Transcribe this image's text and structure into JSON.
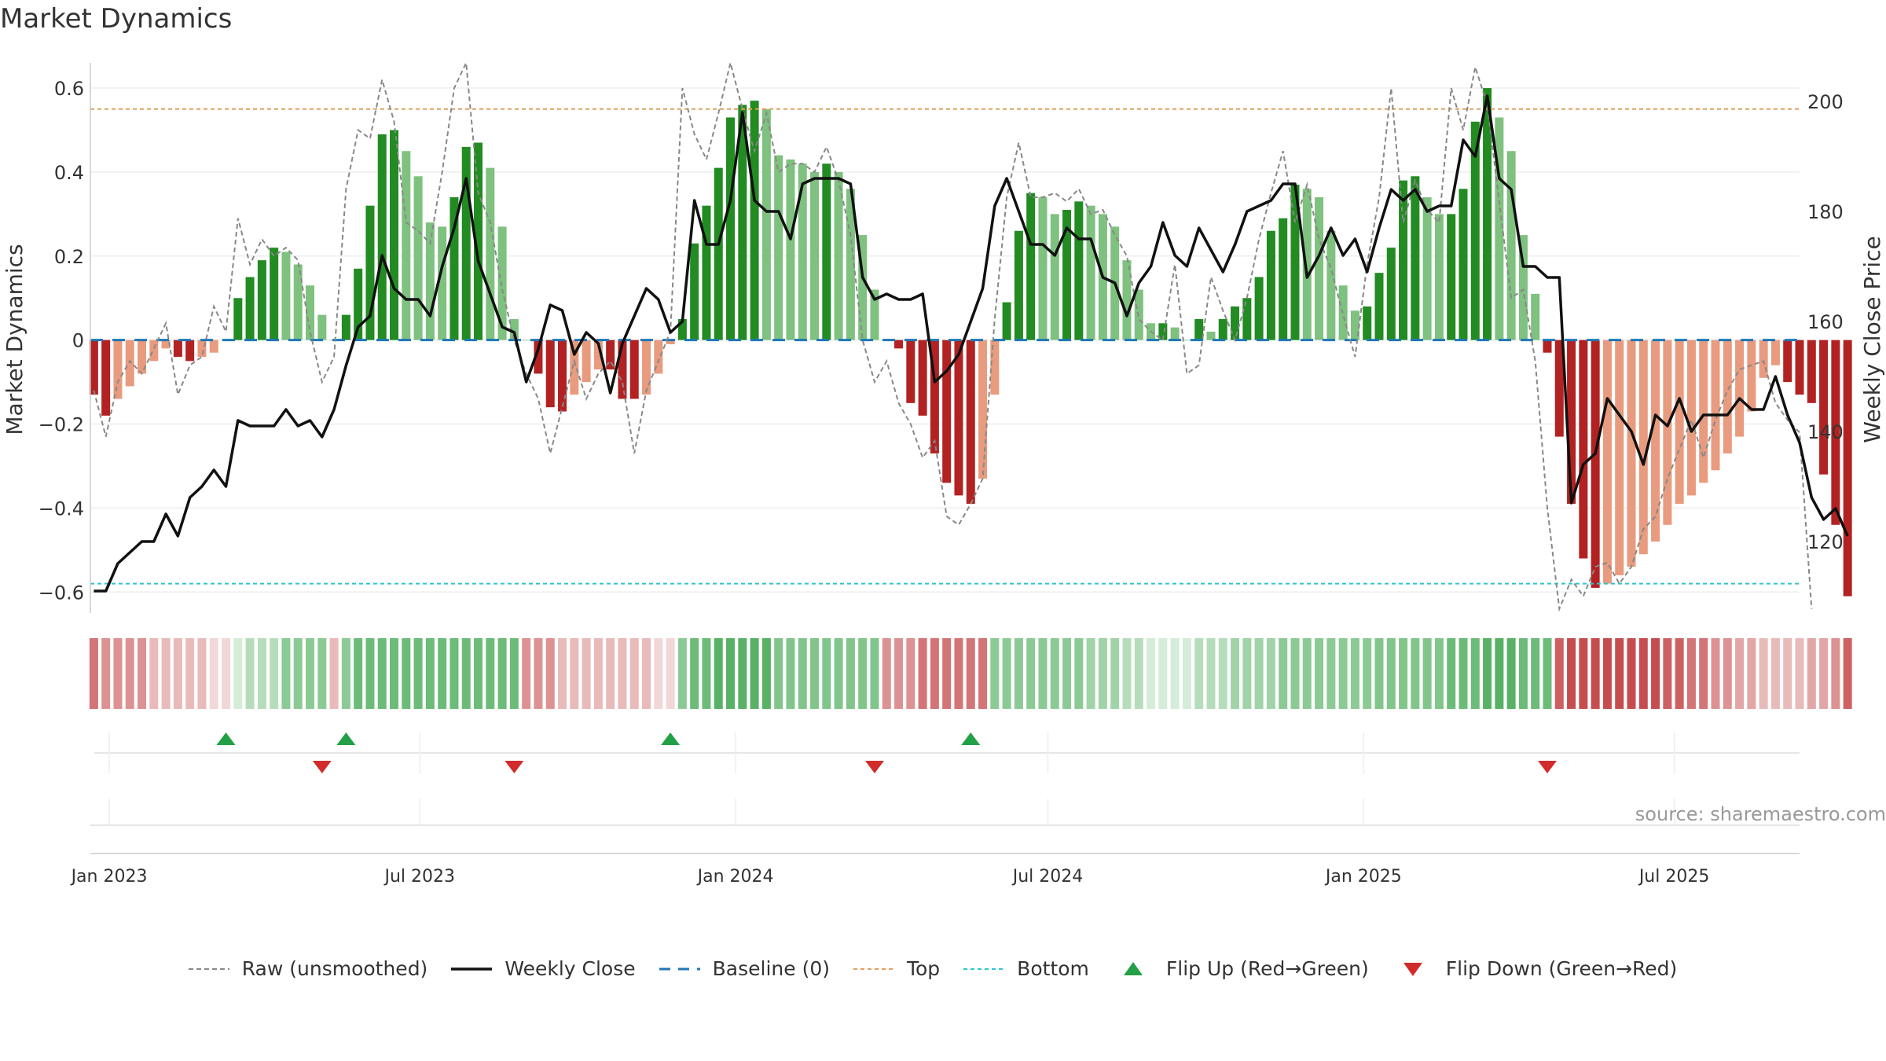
{
  "title": "Market Dynamics",
  "source": "source: sharemaestro.com",
  "colors": {
    "strong_green": "#228B22",
    "light_green": "#7FC17F",
    "strong_red": "#B22222",
    "light_red": "#E89B7E",
    "raw": "#888888",
    "close": "#111111",
    "baseline": "#1F77B4",
    "top": "#E0A060",
    "bottom": "#2EC4D4",
    "flip_up": "#22A046",
    "flip_down": "#D22B2B"
  },
  "legend": [
    {
      "key": "raw",
      "label": "Raw (unsmoothed)"
    },
    {
      "key": "close",
      "label": "Weekly Close"
    },
    {
      "key": "baseline",
      "label": "Baseline (0)"
    },
    {
      "key": "top",
      "label": "Top"
    },
    {
      "key": "bottom",
      "label": "Bottom"
    },
    {
      "key": "flip_up",
      "label": "Flip Up (Red→Green)"
    },
    {
      "key": "flip_down",
      "label": "Flip Down (Green→Red)"
    }
  ],
  "chart_data": {
    "type": "bar",
    "ylabel": "Market Dynamics",
    "y2label": "Weekly Close Price",
    "ylim": [
      -0.65,
      0.66
    ],
    "y2lim": [
      107,
      207
    ],
    "yticks": [
      -0.6,
      -0.4,
      -0.2,
      0,
      0.2,
      0.4,
      0.6
    ],
    "ytick_labels": [
      "−0.6",
      "−0.4",
      "−0.2",
      "0",
      "0.2",
      "0.4",
      "0.6"
    ],
    "y2ticks": [
      120,
      140,
      160,
      180,
      200
    ],
    "xlim": [
      "2022-12-21",
      "2025-09-12"
    ],
    "xticks": [
      {
        "date": "2023-01-01",
        "label": "Jan 2023"
      },
      {
        "date": "2023-07-01",
        "label": "Jul 2023"
      },
      {
        "date": "2024-01-01",
        "label": "Jan 2024"
      },
      {
        "date": "2024-07-01",
        "label": "Jul 2024"
      },
      {
        "date": "2025-01-01",
        "label": "Jan 2025"
      },
      {
        "date": "2025-07-01",
        "label": "Jul 2025"
      }
    ],
    "start_date": "2022-12-23",
    "top_level": 0.55,
    "bottom_level": -0.58,
    "dynamics": [
      -0.13,
      -0.18,
      -0.14,
      -0.11,
      -0.08,
      -0.05,
      -0.02,
      -0.04,
      -0.05,
      -0.04,
      -0.03,
      0.0,
      0.1,
      0.15,
      0.19,
      0.22,
      0.21,
      0.18,
      0.13,
      0.06,
      0.0,
      0.06,
      0.17,
      0.32,
      0.49,
      0.5,
      0.45,
      0.39,
      0.28,
      0.27,
      0.34,
      0.46,
      0.47,
      0.41,
      0.27,
      0.05,
      0.0,
      -0.08,
      -0.16,
      -0.17,
      -0.13,
      -0.1,
      -0.07,
      -0.07,
      -0.14,
      -0.14,
      -0.13,
      -0.08,
      -0.01,
      0.05,
      0.23,
      0.32,
      0.41,
      0.53,
      0.56,
      0.57,
      0.55,
      0.44,
      0.43,
      0.42,
      0.4,
      0.42,
      0.4,
      0.36,
      0.25,
      0.12,
      0.0,
      -0.02,
      -0.15,
      -0.18,
      -0.27,
      -0.34,
      -0.37,
      -0.39,
      -0.33,
      -0.13,
      0.09,
      0.26,
      0.35,
      0.34,
      0.3,
      0.31,
      0.33,
      0.32,
      0.3,
      0.27,
      0.19,
      0.12,
      0.04,
      0.04,
      0.03,
      0.0,
      0.05,
      0.02,
      0.05,
      0.08,
      0.1,
      0.15,
      0.26,
      0.29,
      0.37,
      0.36,
      0.34,
      0.26,
      0.13,
      0.07,
      0.08,
      0.16,
      0.22,
      0.38,
      0.39,
      0.34,
      0.3,
      0.3,
      0.36,
      0.52,
      0.6,
      0.53,
      0.45,
      0.25,
      0.11,
      -0.03,
      -0.23,
      -0.39,
      -0.52,
      -0.59,
      -0.58,
      -0.56,
      -0.54,
      -0.51,
      -0.48,
      -0.44,
      -0.39,
      -0.37,
      -0.34,
      -0.31,
      -0.27,
      -0.23,
      -0.17,
      -0.09,
      -0.06,
      -0.1,
      -0.13,
      -0.15,
      -0.32,
      -0.44,
      -0.61
    ],
    "raw": [
      -0.12,
      -0.23,
      -0.1,
      -0.05,
      -0.08,
      -0.02,
      0.04,
      -0.13,
      -0.06,
      -0.04,
      0.08,
      0.02,
      0.29,
      0.18,
      0.24,
      0.2,
      0.22,
      0.19,
      0.02,
      -0.1,
      -0.04,
      0.36,
      0.5,
      0.48,
      0.62,
      0.52,
      0.28,
      0.26,
      0.23,
      0.4,
      0.6,
      0.66,
      0.35,
      0.28,
      0.12,
      0.0,
      -0.08,
      -0.14,
      -0.27,
      -0.16,
      -0.05,
      -0.14,
      -0.08,
      -0.05,
      -0.1,
      -0.27,
      -0.12,
      -0.05,
      0.02,
      0.6,
      0.49,
      0.43,
      0.54,
      0.66,
      0.55,
      0.45,
      0.54,
      0.4,
      0.42,
      0.42,
      0.4,
      0.46,
      0.38,
      0.25,
      0.0,
      -0.1,
      -0.05,
      -0.15,
      -0.2,
      -0.28,
      -0.24,
      -0.42,
      -0.44,
      -0.39,
      -0.33,
      0.05,
      0.34,
      0.47,
      0.34,
      0.34,
      0.35,
      0.33,
      0.36,
      0.3,
      0.31,
      0.25,
      0.2,
      0.05,
      0.02,
      0.0,
      0.18,
      -0.08,
      -0.06,
      0.15,
      0.07,
      0.0,
      0.1,
      0.24,
      0.35,
      0.45,
      0.28,
      0.37,
      0.24,
      0.17,
      0.06,
      -0.04,
      0.18,
      0.34,
      0.6,
      0.28,
      0.38,
      0.31,
      0.28,
      0.6,
      0.5,
      0.65,
      0.56,
      0.33,
      0.1,
      0.12,
      -0.05,
      -0.4,
      -0.64,
      -0.57,
      -0.61,
      -0.54,
      -0.53,
      -0.58,
      -0.54,
      -0.45,
      -0.42,
      -0.33,
      -0.26,
      -0.19,
      -0.28,
      -0.19,
      -0.12,
      -0.07,
      -0.06,
      -0.05,
      -0.15,
      -0.19,
      -0.22,
      -0.64
    ],
    "close": [
      111,
      111,
      116,
      118,
      120,
      120,
      125,
      121,
      128,
      130,
      133,
      130,
      142,
      141,
      141,
      141,
      144,
      141,
      142,
      139,
      144,
      152,
      159,
      161,
      172,
      166,
      164,
      164,
      161,
      170,
      177,
      186,
      171,
      165,
      159,
      158,
      149,
      155,
      163,
      162,
      154,
      158,
      156,
      147,
      156,
      161,
      166,
      164,
      158,
      160,
      182,
      174,
      174,
      182,
      198,
      182,
      180,
      180,
      175,
      185,
      186,
      186,
      186,
      185,
      168,
      164,
      165,
      164,
      164,
      165,
      149,
      151,
      154,
      160,
      166,
      181,
      186,
      180,
      174,
      174,
      172,
      177,
      175,
      175,
      168,
      167,
      161,
      167,
      170,
      178,
      172,
      170,
      177,
      173,
      169,
      174,
      180,
      181,
      182,
      185,
      185,
      168,
      172,
      177,
      172,
      175,
      169,
      177,
      184,
      182,
      184,
      180,
      181,
      181,
      193,
      190,
      201,
      186,
      184,
      170,
      170,
      168,
      168,
      127,
      134,
      136,
      146,
      143,
      140,
      134,
      143,
      141,
      146,
      140,
      143,
      143,
      143,
      146,
      144,
      144,
      150,
      143,
      138,
      128,
      124,
      126,
      121
    ],
    "color_band": [
      -0.7,
      -0.55,
      -0.55,
      -0.55,
      -0.55,
      -0.35,
      -0.35,
      -0.35,
      -0.35,
      -0.35,
      -0.2,
      -0.2,
      0.2,
      0.35,
      0.35,
      0.35,
      0.55,
      0.55,
      0.55,
      0.55,
      -0.35,
      0.55,
      0.7,
      0.7,
      0.7,
      0.7,
      0.7,
      0.7,
      0.7,
      0.7,
      0.7,
      0.7,
      0.7,
      0.7,
      0.7,
      0.7,
      -0.55,
      -0.55,
      -0.55,
      -0.35,
      -0.35,
      -0.35,
      -0.35,
      -0.35,
      -0.35,
      -0.35,
      -0.35,
      -0.2,
      -0.2,
      0.55,
      0.7,
      0.7,
      0.8,
      0.8,
      0.8,
      0.8,
      0.8,
      0.6,
      0.6,
      0.6,
      0.6,
      0.6,
      0.6,
      0.6,
      0.6,
      0.6,
      -0.55,
      -0.55,
      -0.55,
      -0.7,
      -0.7,
      -0.7,
      -0.7,
      -0.7,
      -0.7,
      0.55,
      0.55,
      0.55,
      0.55,
      0.55,
      0.55,
      0.55,
      0.55,
      0.45,
      0.45,
      0.45,
      0.35,
      0.35,
      0.2,
      0.2,
      0.2,
      0.2,
      0.35,
      0.35,
      0.35,
      0.45,
      0.45,
      0.45,
      0.45,
      0.55,
      0.55,
      0.55,
      0.55,
      0.55,
      0.55,
      0.55,
      0.55,
      0.6,
      0.6,
      0.6,
      0.6,
      0.6,
      0.6,
      0.7,
      0.7,
      0.7,
      0.8,
      0.8,
      0.8,
      0.7,
      0.7,
      0.7,
      -0.8,
      -0.9,
      -0.9,
      -0.9,
      -0.9,
      -0.9,
      -0.9,
      -0.9,
      -0.9,
      -0.8,
      -0.8,
      -0.7,
      -0.7,
      -0.55,
      -0.55,
      -0.45,
      -0.45,
      -0.35,
      -0.35,
      -0.35,
      -0.35,
      -0.45,
      -0.45,
      -0.55,
      -0.8
    ],
    "flips_up": [
      "2023-03-10",
      "2023-05-19",
      "2023-11-24",
      "2024-05-17"
    ],
    "flips_down": [
      "2023-05-05",
      "2023-08-25",
      "2024-03-22",
      "2025-04-18"
    ]
  }
}
